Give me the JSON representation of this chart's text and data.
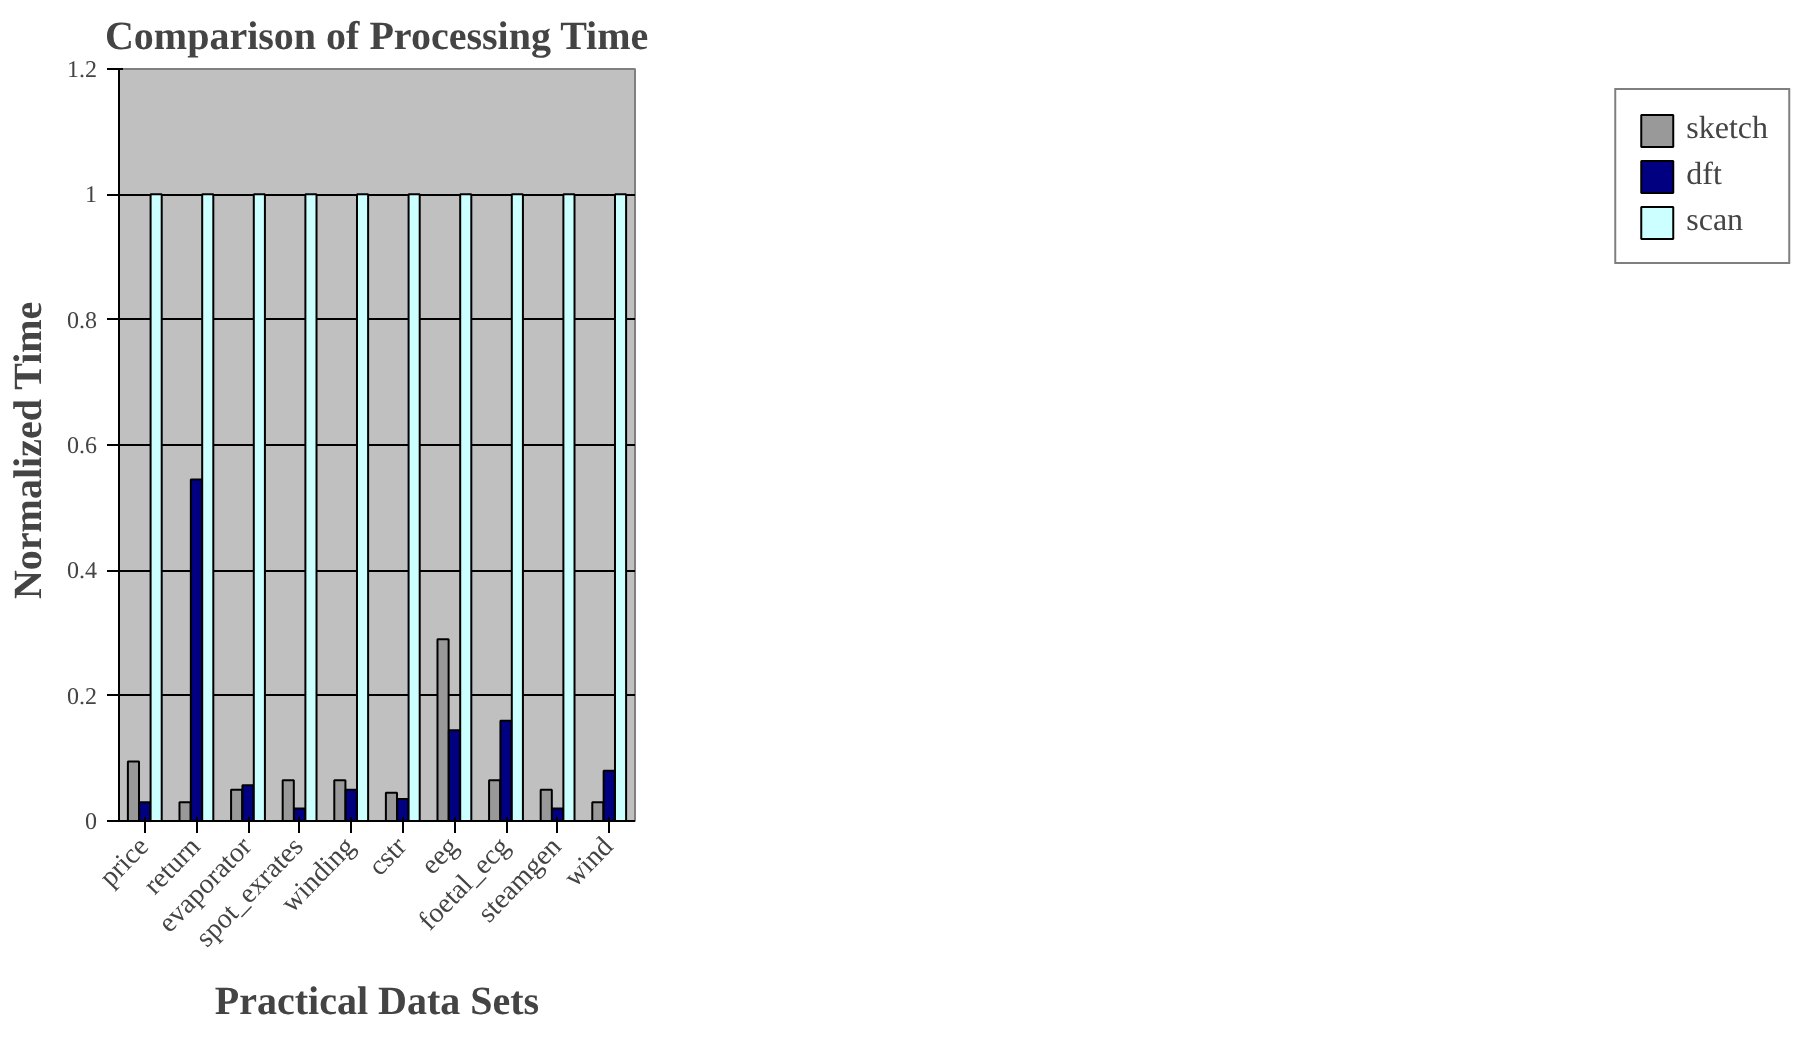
{
  "chart_data": {
    "type": "bar",
    "title": "Comparison of Processing Time",
    "xlabel": "Practical Data Sets",
    "ylabel": "Normalized  Time",
    "categories": [
      "price",
      "return",
      "evaporator",
      "spot_exrates",
      "winding",
      "cstr",
      "eeg",
      "foetal_ecg",
      "steamgen",
      "wind"
    ],
    "series": [
      {
        "name": "sketch",
        "color": "#999999",
        "values": [
          0.095,
          0.03,
          0.05,
          0.065,
          0.065,
          0.045,
          0.29,
          0.065,
          0.05,
          0.03
        ]
      },
      {
        "name": "dft",
        "color": "#000080",
        "values": [
          0.03,
          0.545,
          0.057,
          0.02,
          0.05,
          0.035,
          0.145,
          0.16,
          0.02,
          0.08
        ]
      },
      {
        "name": "scan",
        "color": "#ccffff",
        "values": [
          1,
          1,
          1,
          1,
          1,
          1,
          1,
          1,
          1,
          1
        ]
      }
    ],
    "ylim": [
      0,
      1.2
    ],
    "yticks": [
      0,
      0.2,
      0.4,
      0.6,
      0.8,
      1,
      1.2
    ],
    "grid": "y",
    "legend": "right"
  }
}
